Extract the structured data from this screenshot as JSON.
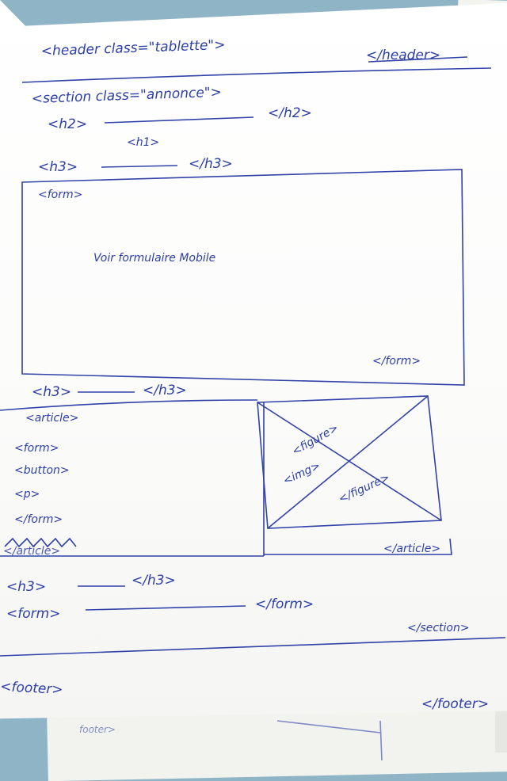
{
  "sketch": {
    "header_open": "<header class=\"tablette\">",
    "header_close": "</header>",
    "section_open": "<section class=\"annonce\">",
    "h2_open": "<h2>",
    "h2_close": "</h2>",
    "h1": "<h1>",
    "h3_a_open": "<h3>",
    "h3_a_close": "</h3>",
    "form_open": "<form>",
    "form_note": "Voir formulaire Mobile",
    "form_close": "</form>",
    "h3_b_open": "<h3>",
    "h3_b_close": "</h3>",
    "article_open": "<article>",
    "article_items": [
      "<form>",
      "<button>",
      "<p>",
      "</form>"
    ],
    "scribble": "</article>",
    "figure_open": "<figure>",
    "img": "<img>",
    "figure_close": "</figure>",
    "article_close": "</article>",
    "h3_c_open": "<h3>",
    "h3_c_close": "</h3>",
    "form2_open": "<form>",
    "form2_close": "</form>",
    "section_close": "</section>",
    "footer_open": "<footer>",
    "footer_close": "</footer>",
    "under_sheet_text": "footer>"
  },
  "colors": {
    "ink": "#2c3fa6",
    "paper": "#ffffff",
    "background": "#8fb4c6"
  }
}
